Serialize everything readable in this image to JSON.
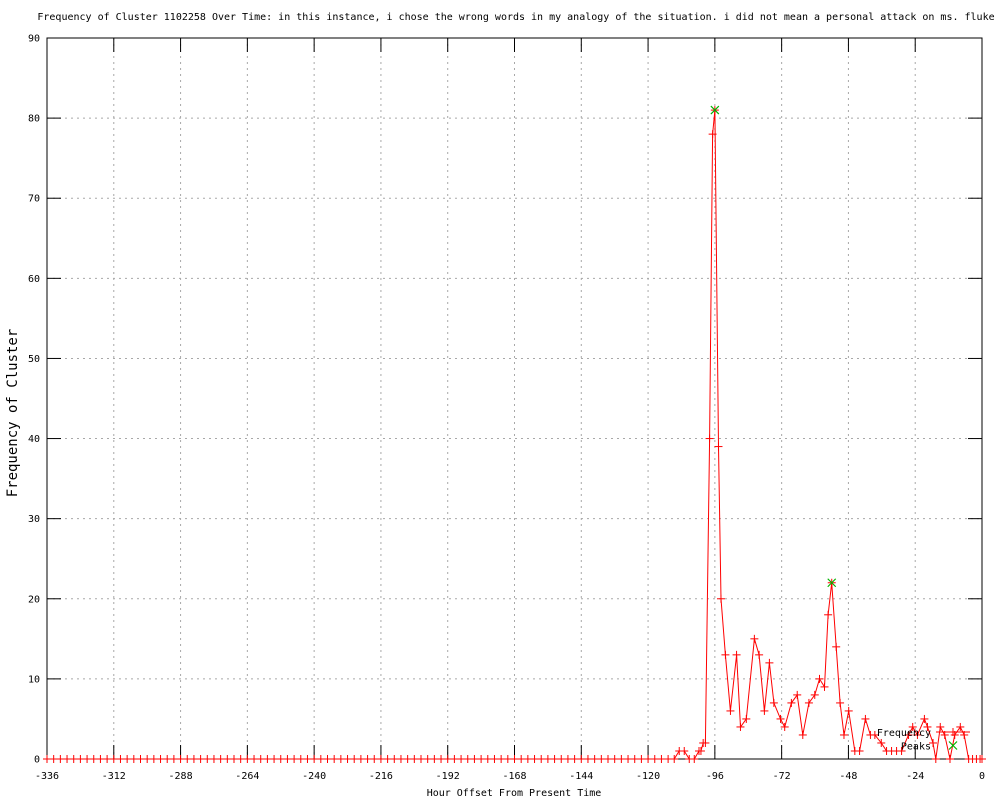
{
  "chart_data": {
    "type": "line",
    "title": "Frequency of Cluster 1102258 Over Time: in this instance, i chose the wrong words in my analogy of the situation. i did not mean a personal attack on ms. fluke",
    "xlabel": "Hour Offset From Present Time",
    "ylabel": "Frequency of Cluster",
    "xlim": [
      -336,
      0
    ],
    "ylim": [
      0,
      90
    ],
    "xticks": [
      -336,
      -312,
      -288,
      -264,
      -240,
      -216,
      -192,
      -168,
      -144,
      -120,
      -96,
      -72,
      -48,
      -24,
      0
    ],
    "yticks": [
      0,
      10,
      20,
      30,
      40,
      50,
      60,
      70,
      80,
      90
    ],
    "grid": true,
    "legend_position": "bottom-right",
    "colors": {
      "frequency": "#ff0000",
      "peaks": "#00b400",
      "grid": "#a8a8a8",
      "axis": "#000000",
      "text": "#000000"
    },
    "series": [
      {
        "name": "Frequency",
        "style": "linespoints",
        "marker": "plus",
        "color": "#ff0000",
        "zero_run": {
          "start": -336,
          "end": -112.8,
          "step": 2.4,
          "value": 0
        },
        "points": [
          [
            -110.6,
            0
          ],
          [
            -108.8,
            1
          ],
          [
            -107,
            1
          ],
          [
            -105.2,
            0
          ],
          [
            -103.4,
            0
          ],
          [
            -101.7,
            1
          ],
          [
            -101,
            1
          ],
          [
            -100.2,
            2
          ],
          [
            -99.4,
            2
          ],
          [
            -97.9,
            40
          ],
          [
            -96.8,
            78
          ],
          [
            -96,
            81
          ],
          [
            -94.7,
            39
          ],
          [
            -93.8,
            20
          ],
          [
            -92.2,
            13
          ],
          [
            -90.4,
            6
          ],
          [
            -88.2,
            13
          ],
          [
            -86.8,
            4
          ],
          [
            -84.7,
            5
          ],
          [
            -81.8,
            15
          ],
          [
            -80.1,
            13
          ],
          [
            -78.2,
            6
          ],
          [
            -76.4,
            12
          ],
          [
            -74.8,
            7
          ],
          [
            -72.4,
            5
          ],
          [
            -70.9,
            4
          ],
          [
            -68.5,
            7
          ],
          [
            -66.4,
            8
          ],
          [
            -64.4,
            3
          ],
          [
            -62.2,
            7
          ],
          [
            -60.1,
            8
          ],
          [
            -58.4,
            10
          ],
          [
            -56.6,
            9
          ],
          [
            -55.3,
            18
          ],
          [
            -54,
            22
          ],
          [
            -52.4,
            14
          ],
          [
            -51,
            7
          ],
          [
            -49.6,
            3
          ],
          [
            -47.9,
            6
          ],
          [
            -45.7,
            1
          ],
          [
            -44,
            1
          ],
          [
            -41.9,
            5
          ],
          [
            -40.1,
            3
          ],
          [
            -38.5,
            3
          ],
          [
            -36.2,
            2
          ],
          [
            -34.3,
            1
          ],
          [
            -32.5,
            1
          ],
          [
            -30.7,
            1
          ],
          [
            -28.9,
            1
          ],
          [
            -26.4,
            3
          ],
          [
            -24.9,
            4
          ],
          [
            -23.2,
            3
          ],
          [
            -20.7,
            5
          ],
          [
            -19.6,
            4
          ],
          [
            -17.6,
            2
          ],
          [
            -16.6,
            0
          ],
          [
            -15,
            4
          ],
          [
            -13.4,
            3
          ],
          [
            -11.5,
            0
          ],
          [
            -9.8,
            3
          ],
          [
            -7.8,
            4
          ],
          [
            -6.4,
            3
          ],
          [
            -4.8,
            0
          ],
          [
            -3.4,
            0
          ],
          [
            -2,
            0
          ],
          [
            -0.7,
            0
          ],
          [
            0,
            0
          ]
        ]
      },
      {
        "name": "Peaks",
        "style": "points",
        "marker": "cross",
        "color": "#00b400",
        "points": [
          [
            -96,
            81
          ],
          [
            -54,
            22
          ]
        ]
      }
    ]
  }
}
